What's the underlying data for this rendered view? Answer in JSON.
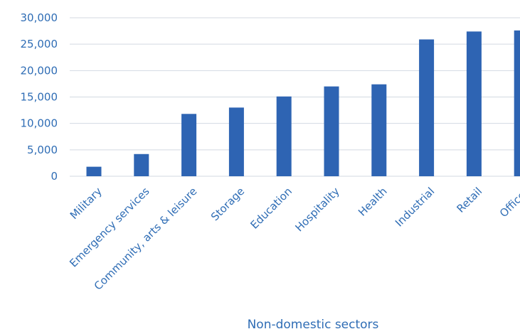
{
  "chart_data": {
    "type": "bar",
    "categories": [
      "Military",
      "Emergency services",
      "Community, arts & leisure",
      "Storage",
      "Education",
      "Hospitality",
      "Health",
      "Industrial",
      "Retail",
      "Offices"
    ],
    "values": [
      1800,
      4200,
      11800,
      13000,
      15100,
      17000,
      17400,
      25900,
      27400,
      27600
    ],
    "xlabel": "Non-domestic sectors",
    "ylabel": "",
    "ylim": [
      0,
      30000
    ],
    "yticks": [
      0,
      5000,
      10000,
      15000,
      20000,
      25000,
      30000
    ],
    "ytick_labels": [
      "0",
      "5,000",
      "10,000",
      "15,000",
      "20,000",
      "25,000",
      "30,000"
    ],
    "grid": "horizontal",
    "colors": {
      "bar": "#2e64b3",
      "text": "#2f6db5",
      "grid": "#d3d9e2"
    }
  }
}
